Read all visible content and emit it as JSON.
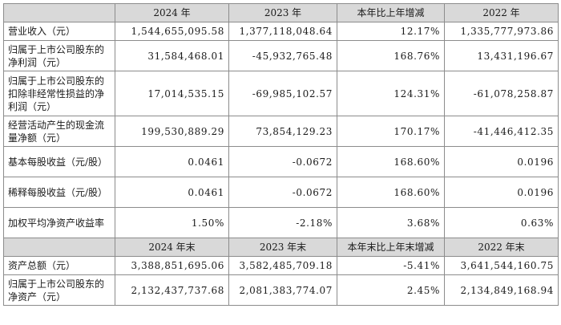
{
  "header1": [
    "",
    "2024 年",
    "2023 年",
    "本年比上年增减",
    "2022 年"
  ],
  "rows1": [
    {
      "label": "营业收入（元）",
      "values": [
        "1,544,655,095.58",
        "1,377,118,048.64",
        "12.17%",
        "1,335,777,973.86"
      ]
    },
    {
      "label": "归属于上市公司股东的净利润（元）",
      "values": [
        "31,584,468.01",
        "-45,932,765.48",
        "168.76%",
        "13,431,196.67"
      ]
    },
    {
      "label": "归属于上市公司股东的扣除非经常性损益的净利润（元）",
      "values": [
        "17,014,535.15",
        "-69,985,102.57",
        "124.31%",
        "-61,078,258.87"
      ]
    },
    {
      "label": "经营活动产生的现金流量净额（元）",
      "values": [
        "199,530,889.29",
        "73,854,129.23",
        "170.17%",
        "-41,446,412.35"
      ]
    },
    {
      "label": "基本每股收益（元/股）",
      "values": [
        "0.0461",
        "-0.0672",
        "168.60%",
        "0.0196"
      ]
    },
    {
      "label": "稀释每股收益（元/股）",
      "values": [
        "0.0461",
        "-0.0672",
        "168.60%",
        "0.0196"
      ]
    },
    {
      "label": "加权平均净资产收益率",
      "values": [
        "1.50%",
        "-2.18%",
        "3.68%",
        "0.63%"
      ]
    }
  ],
  "header2": [
    "",
    "2024 年末",
    "2023 年末",
    "本年末比上年末增减",
    "2022 年末"
  ],
  "rows2": [
    {
      "label": "资产总额（元）",
      "values": [
        "3,388,851,695.06",
        "3,582,485,709.18",
        "-5.41%",
        "3,641,544,160.75"
      ]
    },
    {
      "label": "归属于上市公司股东的净资产（元）",
      "values": [
        "2,132,437,737.68",
        "2,081,383,774.07",
        "2.45%",
        "2,134,849,168.94"
      ]
    }
  ]
}
